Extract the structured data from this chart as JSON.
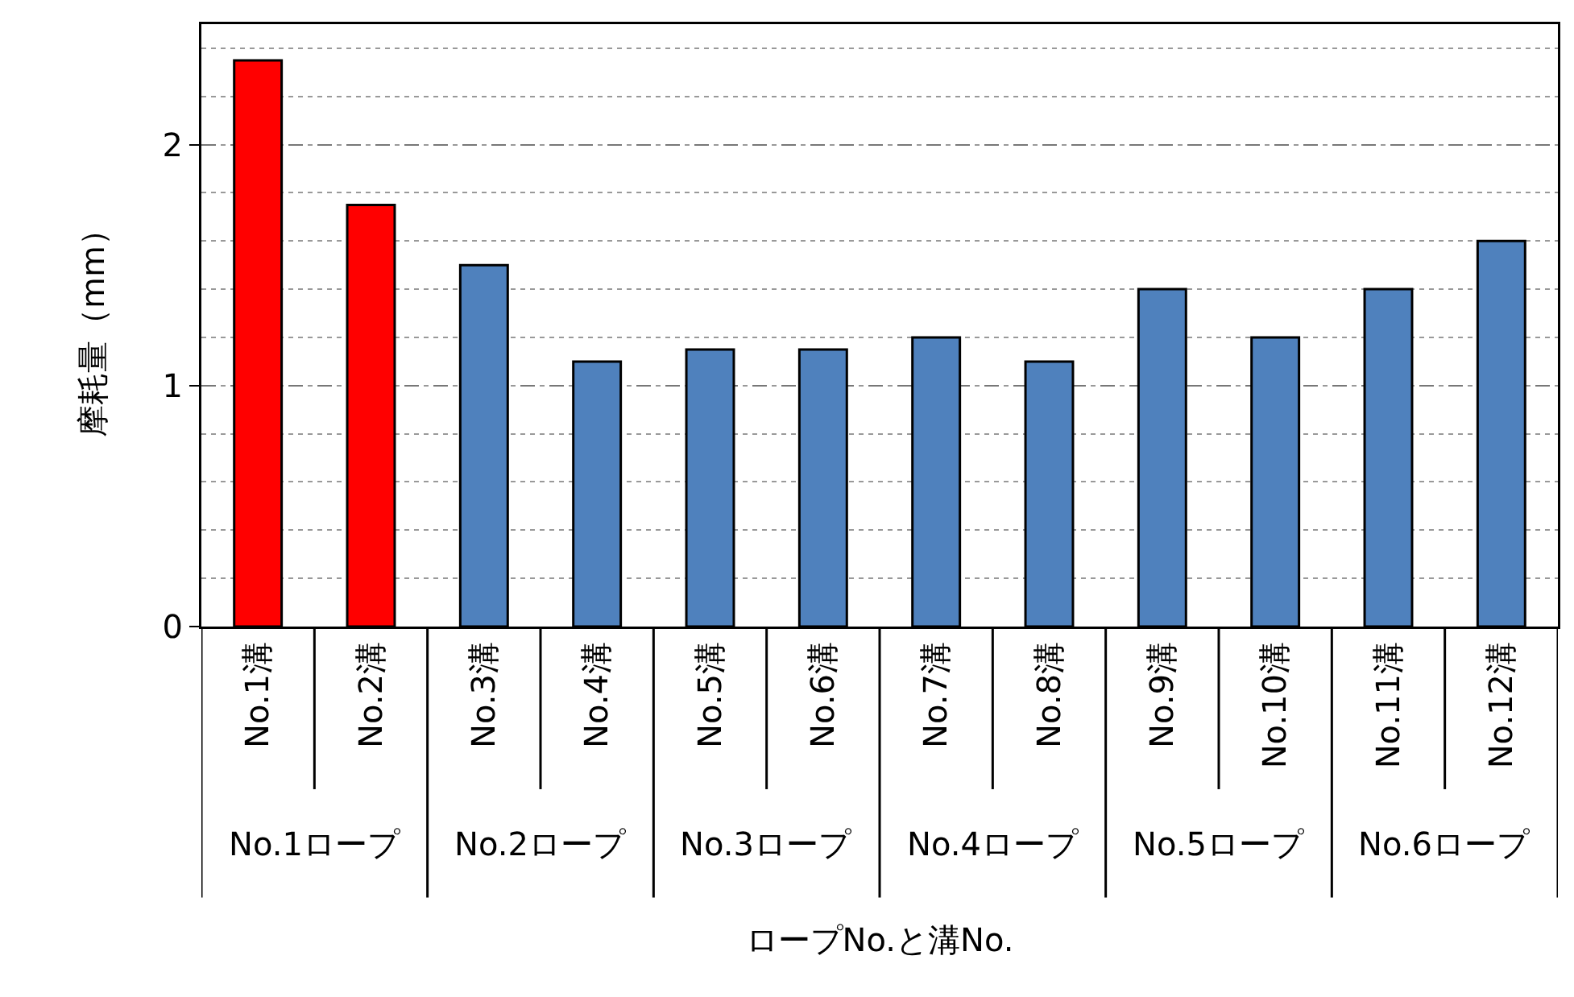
{
  "chart_data": {
    "type": "bar",
    "xlabel": "ロープNo.と溝No.",
    "ylabel": "摩耗量（mm）",
    "categories": [
      "No.1溝",
      "No.2溝",
      "No.3溝",
      "No.4溝",
      "No.5溝",
      "No.6溝",
      "No.7溝",
      "No.8溝",
      "No.9溝",
      "No.10溝",
      "No.11溝",
      "No.12溝"
    ],
    "values": [
      2.35,
      1.75,
      1.5,
      1.1,
      1.15,
      1.15,
      1.2,
      1.1,
      1.4,
      1.2,
      1.4,
      1.6
    ],
    "colors": [
      "#ff0000",
      "#ff0000",
      "#4f81bd",
      "#4f81bd",
      "#4f81bd",
      "#4f81bd",
      "#4f81bd",
      "#4f81bd",
      "#4f81bd",
      "#4f81bd",
      "#4f81bd",
      "#4f81bd"
    ],
    "ylim": [
      0,
      2.5
    ],
    "yticks": [
      0,
      1,
      2
    ],
    "grid": "y",
    "legend": false,
    "annotations": [
      "No.1ロープ",
      "No.2ロープ",
      "No.3ロープ",
      "No.4ロープ",
      "No.5ロープ",
      "No.6ロープ"
    ]
  }
}
